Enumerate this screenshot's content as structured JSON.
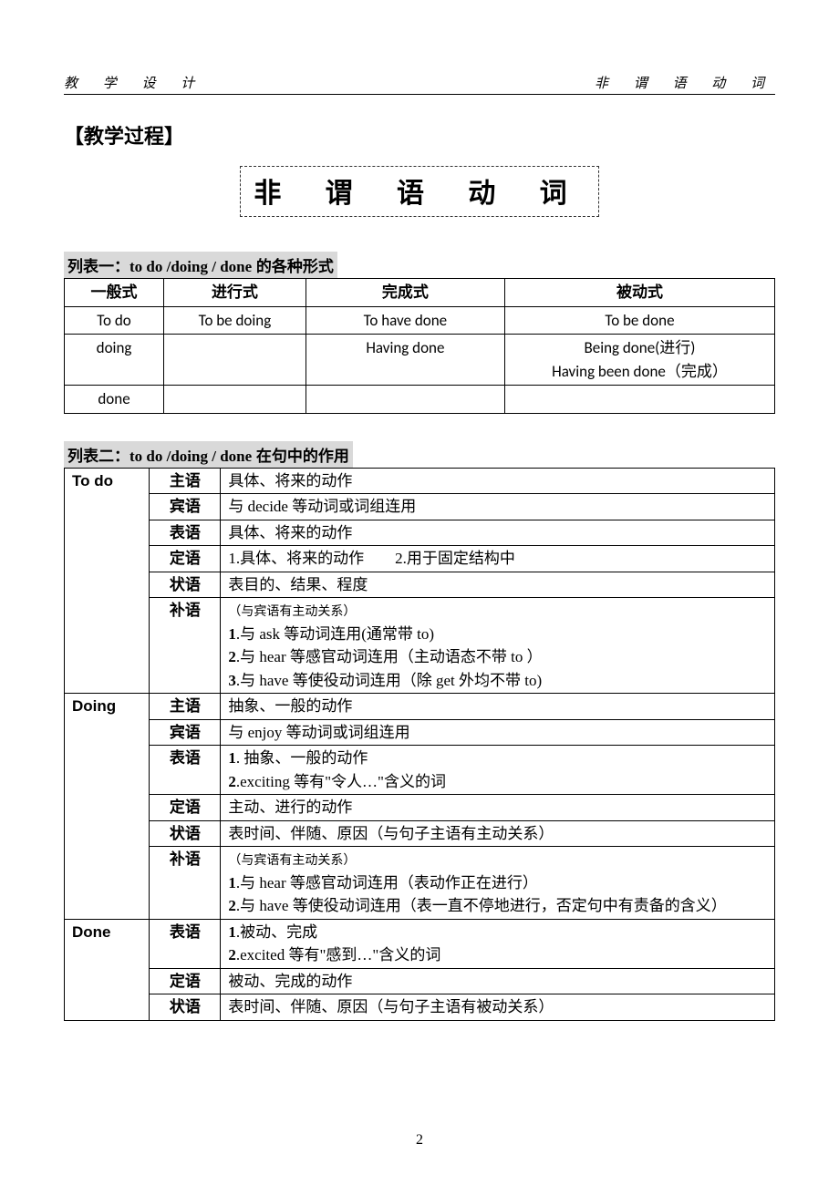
{
  "header": {
    "left": "教 学 设 计",
    "right": "非 谓 语 动 词"
  },
  "section_heading": "【教学过程】",
  "main_title": "非 谓 语 动 词",
  "table1": {
    "caption_prefix": "列表一：",
    "caption_en": "to do /doing / done",
    "caption_suffix": " 的各种形式",
    "headers": [
      "一般式",
      "进行式",
      "完成式",
      "被动式"
    ],
    "rows": [
      [
        "To do",
        "To be doing",
        "To have done",
        "To be done"
      ],
      [
        "doing",
        "",
        "Having done",
        "Being done(进行)\nHaving been done（完成）"
      ],
      [
        "done",
        "",
        "",
        ""
      ]
    ]
  },
  "table2": {
    "caption_prefix": "列表二：",
    "caption_en": "to do /doing / done",
    "caption_suffix": " 在句中的作用",
    "groups": [
      {
        "head": "To do",
        "rows": [
          {
            "role": "主语",
            "desc": "具体、将来的动作"
          },
          {
            "role": "宾语",
            "desc": "与 decide 等动词或词组连用"
          },
          {
            "role": "表语",
            "desc": "具体、将来的动作"
          },
          {
            "role": "定语",
            "desc": "1.具体、将来的动作        2.用于固定结构中"
          },
          {
            "role": "状语",
            "desc": "表目的、结果、程度"
          },
          {
            "role": "补语",
            "desc_note": "（与宾语有主动关系）",
            "desc_lines": [
              "1.与 ask 等动词连用(通常带 to)",
              "2.与 hear 等感官动词连用（主动语态不带 to ）",
              "3.与 have 等使役动词连用（除 get 外均不带 to)"
            ]
          }
        ]
      },
      {
        "head": "Doing",
        "rows": [
          {
            "role": "主语",
            "desc": "抽象、一般的动作"
          },
          {
            "role": "宾语",
            "desc": "与 enjoy 等动词或词组连用"
          },
          {
            "role": "表语",
            "desc_lines": [
              "1.  抽象、一般的动作",
              "2.exciting 等有\"令人…\"含义的词"
            ]
          },
          {
            "role": "定语",
            "desc": "主动、进行的动作"
          },
          {
            "role": "状语",
            "desc": "表时间、伴随、原因（与句子主语有主动关系）"
          },
          {
            "role": "补语",
            "desc_note": "（与宾语有主动关系）",
            "desc_lines": [
              "1.与 hear 等感官动词连用（表动作正在进行）",
              "2.与 have 等使役动词连用（表一直不停地进行，否定句中有责备的含义）"
            ]
          }
        ]
      },
      {
        "head": "Done",
        "rows": [
          {
            "role": "表语",
            "desc_lines": [
              "1.被动、完成",
              "2.excited 等有\"感到…\"含义的词"
            ]
          },
          {
            "role": "定语",
            "desc": "被动、完成的动作"
          },
          {
            "role": "状语",
            "desc": "表时间、伴随、原因（与句子主语有被动关系）"
          }
        ]
      }
    ]
  },
  "page_number": "2"
}
